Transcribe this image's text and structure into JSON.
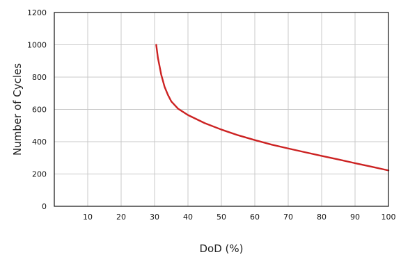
{
  "chart_data": {
    "type": "line",
    "xlabel": "DoD (%)",
    "ylabel": "Number of Cycles",
    "xlim": [
      0,
      100
    ],
    "ylim": [
      0,
      1200
    ],
    "xticks": [
      10,
      20,
      30,
      40,
      50,
      60,
      70,
      80,
      90,
      100
    ],
    "yticks": [
      0,
      200,
      400,
      600,
      800,
      1000,
      1200
    ],
    "grid": true,
    "series": [
      {
        "color": "#cc2222",
        "x": [
          30.5,
          31,
          32,
          33,
          34,
          35,
          37,
          40,
          45,
          50,
          55,
          60,
          65,
          70,
          75,
          80,
          85,
          90,
          95,
          100
        ],
        "y": [
          1000,
          920,
          815,
          740,
          690,
          650,
          605,
          565,
          515,
          475,
          440,
          410,
          382,
          358,
          335,
          312,
          290,
          267,
          245,
          222
        ]
      }
    ]
  }
}
